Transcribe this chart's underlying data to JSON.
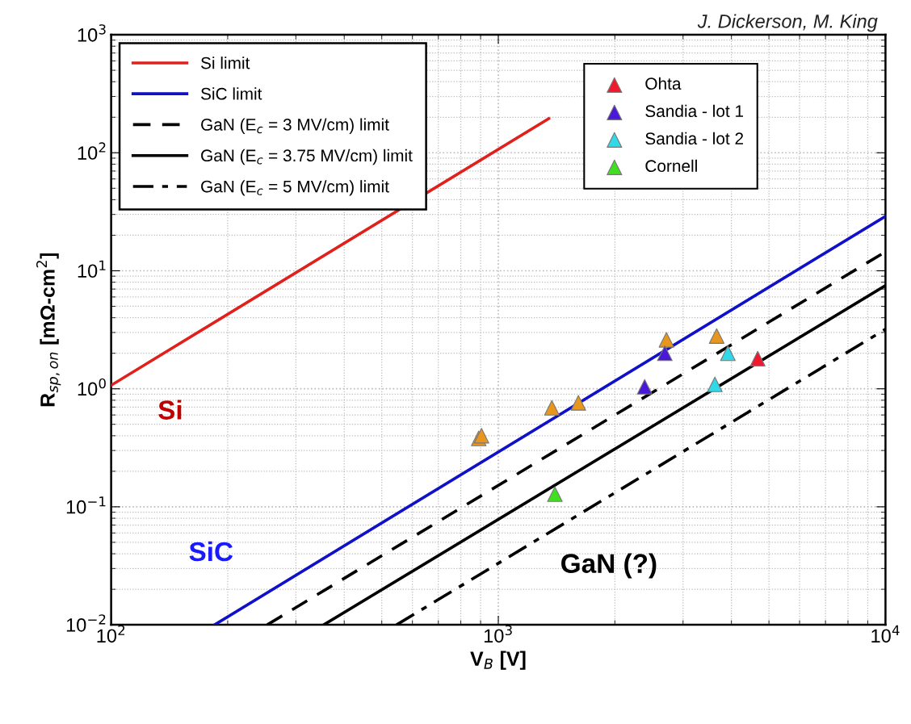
{
  "chart_data": {
    "type": "line",
    "xlabel": "V$_{B}$ [V]",
    "ylabel": "R$_{sp,on}$ [mΩ-cm$^{2}$]",
    "log": "xy",
    "grid": true,
    "legend": "top left",
    "xlim": [
      100,
      10000
    ],
    "ylim": [
      0.01,
      1000
    ],
    "xticks": [
      {
        "value": 100,
        "label": "10$^{2}$"
      },
      {
        "value": 1000,
        "label": "10$^{3}$"
      },
      {
        "value": 10000,
        "label": "10$^{4}$"
      }
    ],
    "yticks": [
      {
        "value": 0.01,
        "label": "10$^{−2}$"
      },
      {
        "value": 0.1,
        "label": "10$^{−1}$"
      },
      {
        "value": 1,
        "label": "10$^{0}$"
      },
      {
        "value": 10,
        "label": "10$^{1}$"
      },
      {
        "value": 100,
        "label": "10$^{2}$"
      },
      {
        "value": 1000,
        "label": "10$^{3}$"
      }
    ],
    "annotations": [
      "J. Dickerson, M. King",
      "Si",
      "SiC",
      "GaN (?)"
    ],
    "series": [
      {
        "name": "Si limit",
        "color": "#e0201b",
        "line_style": "solid",
        "x": [
          100,
          1350
        ],
        "values": [
          1.07,
          195
        ]
      },
      {
        "name": "SiC limit",
        "color": "#1010c8",
        "line_style": "solid",
        "x": [
          185,
          10000
        ],
        "values": [
          0.01,
          29
        ]
      },
      {
        "name": "GaN (E$_{c}$ = 3 MV/cm) limit",
        "color": "#000000",
        "type": "line",
        "line_style": "dashed",
        "x": [
          253,
          10000
        ],
        "values": [
          0.01,
          14.5
        ]
      },
      {
        "name": "GaN (E$_{c}$ = 3.75 MV/cm) limit",
        "color": "#000000",
        "type": "line",
        "line_style": "solid",
        "x": [
          354,
          10000
        ],
        "values": [
          0.01,
          7.5
        ]
      },
      {
        "name": "GaN (E$_{c}$ = 5 MV/cm) limit",
        "color": "#000000",
        "type": "line",
        "line_style": "dashdot",
        "x": [
          546,
          10000
        ],
        "values": [
          0.01,
          3.2
        ]
      },
      {
        "color": "#e8961e",
        "type": "scatter",
        "marker": "triangle",
        "x": [
          890,
          905,
          1375,
          1610,
          2718,
          3664
        ],
        "values": [
          0.38,
          0.4,
          0.69,
          0.76,
          2.6,
          2.8
        ]
      },
      {
        "name": "Ohta",
        "color": "#f0182e",
        "type": "scatter",
        "marker": "triangle",
        "x": [
          4677
        ],
        "values": [
          1.8
        ]
      },
      {
        "name": "Sandia - lot 1",
        "color": "#4a18d8",
        "type": "scatter",
        "marker": "triangle",
        "x": [
          2388,
          2692
        ],
        "values": [
          1.04,
          2.0
        ]
      },
      {
        "name": "Sandia - lot 2",
        "color": "#30d8e8",
        "type": "scatter",
        "marker": "triangle",
        "x": [
          3625,
          3917
        ],
        "values": [
          1.09,
          2.0
        ]
      },
      {
        "name": "Cornell",
        "color": "#40e020",
        "type": "scatter",
        "marker": "triangle",
        "x": [
          1400
        ],
        "values": [
          0.128
        ]
      }
    ]
  }
}
